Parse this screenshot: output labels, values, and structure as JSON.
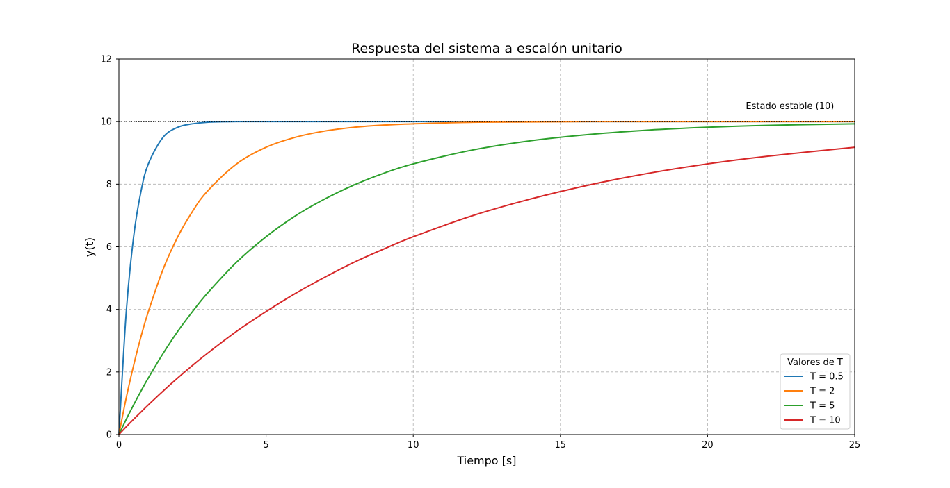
{
  "chart_data": {
    "type": "line",
    "title": "Respuesta del sistema a escalón unitario",
    "xlabel": "Tiempo [s]",
    "ylabel": "y(t)",
    "xlim": [
      0,
      25
    ],
    "ylim": [
      0,
      12
    ],
    "xticks": [
      0,
      5,
      10,
      15,
      20,
      25
    ],
    "yticks": [
      0,
      2,
      4,
      6,
      8,
      10,
      12
    ],
    "grid": true,
    "x": [
      0,
      0.25,
      0.5,
      0.75,
      1,
      1.5,
      2,
      2.5,
      3,
      4,
      5,
      6,
      7,
      8,
      9,
      10,
      12,
      14,
      16,
      18,
      20,
      22,
      25
    ],
    "series": [
      {
        "name": "T = 0.5",
        "color": "#1f77b4",
        "values": [
          0,
          3.93,
          6.32,
          7.77,
          8.65,
          9.5,
          9.82,
          9.93,
          9.98,
          10.0,
          10.0,
          10.0,
          10.0,
          10.0,
          10.0,
          10.0,
          10.0,
          10.0,
          10.0,
          10.0,
          10.0,
          10.0,
          10.0
        ]
      },
      {
        "name": "T = 2",
        "color": "#ff7f0e",
        "values": [
          0,
          1.18,
          2.21,
          3.13,
          3.93,
          5.28,
          6.32,
          7.13,
          7.77,
          8.65,
          9.18,
          9.5,
          9.7,
          9.82,
          9.89,
          9.93,
          9.98,
          9.99,
          10.0,
          10.0,
          10.0,
          10.0,
          10.0
        ]
      },
      {
        "name": "T = 5",
        "color": "#2ca02c",
        "values": [
          0,
          0.49,
          0.95,
          1.39,
          1.81,
          2.59,
          3.3,
          3.93,
          4.51,
          5.51,
          6.32,
          6.99,
          7.53,
          7.98,
          8.35,
          8.65,
          9.09,
          9.39,
          9.59,
          9.73,
          9.82,
          9.88,
          9.93
        ]
      },
      {
        "name": "T = 10",
        "color": "#d62728",
        "values": [
          0,
          0.25,
          0.49,
          0.72,
          0.95,
          1.39,
          1.81,
          2.21,
          2.59,
          3.3,
          3.93,
          4.51,
          5.03,
          5.51,
          5.93,
          6.32,
          6.99,
          7.53,
          7.98,
          8.35,
          8.65,
          8.89,
          9.18
        ]
      }
    ],
    "reference_line": {
      "y": 10,
      "style": "dotted",
      "color": "#000000"
    },
    "annotation": {
      "text": "Estado estable (10)",
      "x": 21.3,
      "y": 10.4
    },
    "legend": {
      "title": "Valores de T",
      "placement": "lower-right"
    }
  }
}
